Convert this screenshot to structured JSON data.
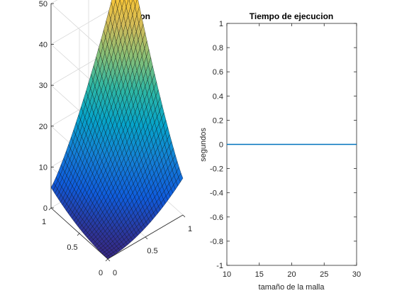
{
  "chart_data": [
    {
      "type": "surface",
      "title": "Aproximacion",
      "xlabel": "",
      "ylabel": "",
      "zlabel": "",
      "x_ticks": [
        "0",
        "0.5",
        "1"
      ],
      "y_ticks": [
        "0",
        "0.5",
        "1"
      ],
      "z_ticks": [
        "0",
        "10",
        "20",
        "30",
        "40",
        "50"
      ],
      "xlim": [
        0,
        1
      ],
      "ylim": [
        0,
        1
      ],
      "zlim": [
        0,
        50
      ],
      "grid": true,
      "colormap": "parula",
      "colormap_colors": [
        "#352a87",
        "#0f5cdd",
        "#1481d6",
        "#06a4ca",
        "#2eb7a4",
        "#87bf77",
        "#d1bb59",
        "#fec832",
        "#f9fb0e"
      ],
      "surface": {
        "description_values": {
          "at_x0_y0": 0,
          "at_x1_y0": 9,
          "at_x0_y1": 5,
          "at_x1_y1": 54
        },
        "mesh_size": 30
      }
    },
    {
      "type": "line",
      "title": "Tiempo de ejecucion",
      "xlabel": "tamaño de la malla",
      "ylabel": "segundos",
      "xlim": [
        10,
        30
      ],
      "ylim": [
        -1,
        1
      ],
      "x_ticks": [
        "10",
        "15",
        "20",
        "25",
        "30"
      ],
      "y_ticks": [
        "-1",
        "-0.8",
        "-0.6",
        "-0.4",
        "-0.2",
        "0",
        "0.2",
        "0.4",
        "0.6",
        "0.8",
        "1"
      ],
      "series": [
        {
          "x": [
            10,
            15,
            20,
            25,
            30
          ],
          "y": [
            0,
            0,
            0,
            0,
            0
          ],
          "color": "#0072bd"
        }
      ],
      "grid": false
    }
  ]
}
